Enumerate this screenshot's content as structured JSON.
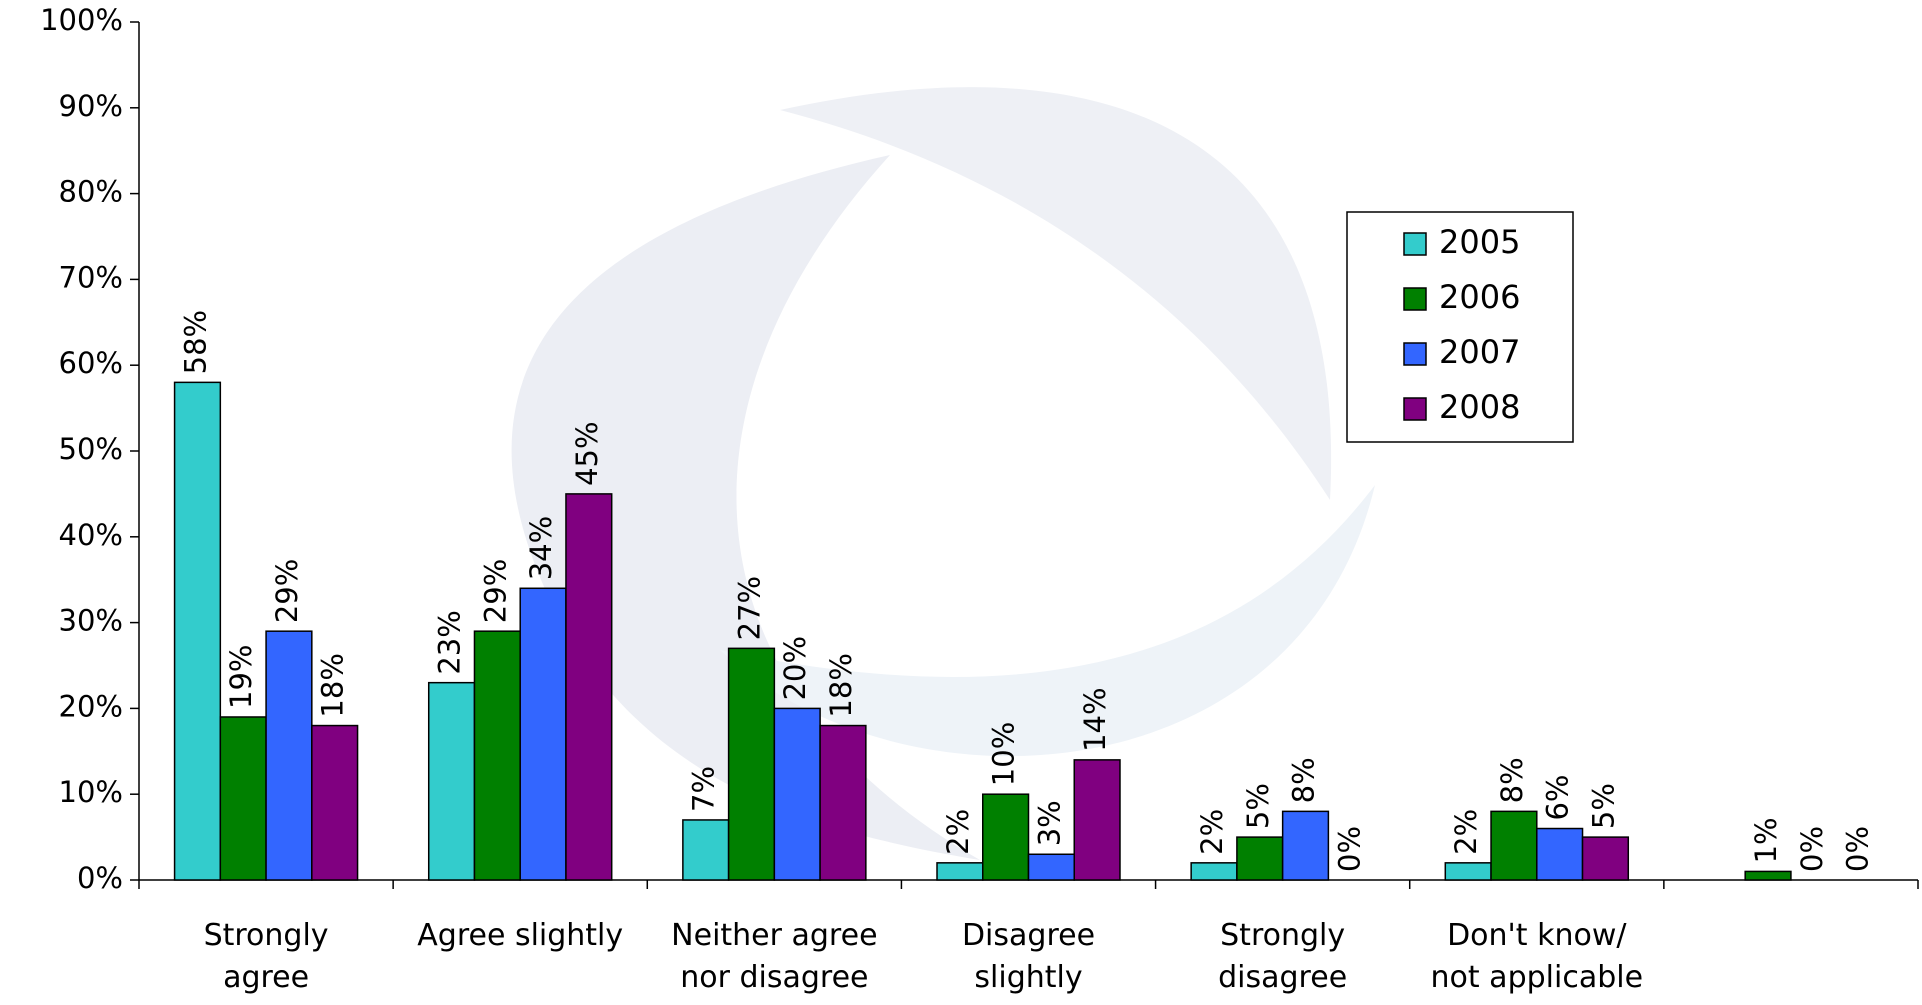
{
  "chart_data": {
    "type": "bar",
    "categories": [
      "Strongly\nagree",
      "Agree slightly",
      "Neither agree\nnor disagree",
      "Disagree\nslightly",
      "Strongly\ndisagree",
      "Don't know/\nnot applicable",
      null
    ],
    "series": [
      {
        "name": "2005",
        "color": "#33cccc",
        "values": [
          58,
          23,
          7,
          2,
          2,
          2,
          null
        ],
        "value_labels": [
          "58%",
          "23%",
          "7%",
          "2%",
          "2%",
          "2%",
          null
        ]
      },
      {
        "name": "2006",
        "color": "#008000",
        "values": [
          19,
          29,
          27,
          10,
          5,
          8,
          1
        ],
        "value_labels": [
          "19%",
          "29%",
          "27%",
          "10%",
          "5%",
          "8%",
          "1%"
        ]
      },
      {
        "name": "2007",
        "color": "#3366ff",
        "values": [
          29,
          34,
          20,
          3,
          8,
          6,
          0
        ],
        "value_labels": [
          "29%",
          "34%",
          "20%",
          "3%",
          "8%",
          "6%",
          "0%"
        ]
      },
      {
        "name": "2008",
        "color": "#800080",
        "values": [
          18,
          45,
          18,
          14,
          0,
          5,
          0
        ],
        "value_labels": [
          "18%",
          "45%",
          "18%",
          "14%",
          "0%",
          "5%",
          "0%"
        ]
      }
    ],
    "ylim": [
      0,
      100
    ],
    "yticks": [
      {
        "value": 0,
        "label": "0%"
      },
      {
        "value": 10,
        "label": "10%"
      },
      {
        "value": 20,
        "label": "20%"
      },
      {
        "value": 30,
        "label": "30%"
      },
      {
        "value": 40,
        "label": "40%"
      },
      {
        "value": 50,
        "label": "50%"
      },
      {
        "value": 60,
        "label": "60%"
      },
      {
        "value": 70,
        "label": "70%"
      },
      {
        "value": 80,
        "label": "80%"
      },
      {
        "value": 90,
        "label": "90%"
      },
      {
        "value": 100,
        "label": "100%"
      }
    ],
    "legend": "upper-right"
  }
}
